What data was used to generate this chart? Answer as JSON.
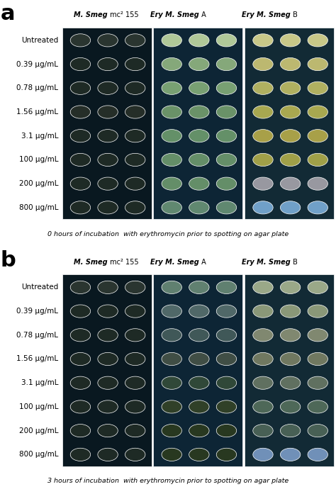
{
  "panel_labels": [
    "a",
    "b"
  ],
  "col_headers_italic": [
    "M. Smeg",
    "Ery M. Smeg",
    "Ery M. Smeg"
  ],
  "col_headers_normal": [
    " mc² 155",
    " A",
    " B"
  ],
  "row_labels": [
    "Untreated",
    "0.39 μg/mL",
    "0.78 μg/mL",
    "1.56 μg/mL",
    "3.1 μg/mL",
    "100 μg/mL",
    "200 μg/mL",
    "800 μg/mL"
  ],
  "caption_a": "0 hours of incubation  with erythromycin prior to spotting on agar plate",
  "caption_b": "3 hours of incubation  with erythromycin prior to spotting on agar plate",
  "bg_cols": [
    "#091820",
    "#0d2535",
    "#122a35"
  ],
  "dot_colors_a": [
    [
      "#2a3530",
      "#1e2a25",
      "#1e2a25",
      "#252e28",
      "#1e2a25",
      "#1e2a25",
      "#1e2a25",
      "#1e2a25"
    ],
    [
      "#b0c898",
      "#85a87a",
      "#78a072",
      "#6a9268",
      "#649068",
      "#648e68",
      "#648e68",
      "#608870"
    ],
    [
      "#c8c888",
      "#bcb870",
      "#b0b060",
      "#a8a850",
      "#a8a048",
      "#a0a048",
      "#9898a0",
      "#70a0c8"
    ]
  ],
  "dot_colors_b": [
    [
      "#2a3530",
      "#1e2a25",
      "#1e2a25",
      "#1e2a25",
      "#1e2a25",
      "#1e2a25",
      "#1e2a25",
      "#1e2a25"
    ],
    [
      "#608070",
      "#506868",
      "#405858",
      "#404e45",
      "#304838",
      "#304028",
      "#283820",
      "#283820"
    ],
    [
      "#9aa888",
      "#8a9878",
      "#808870",
      "#707860",
      "#607060",
      "#4e6858",
      "#486055",
      "#7090b8"
    ]
  ],
  "font_size_label": 7.5,
  "font_size_header": 7.0,
  "font_size_panel_letter": 22,
  "font_size_caption": 6.8
}
